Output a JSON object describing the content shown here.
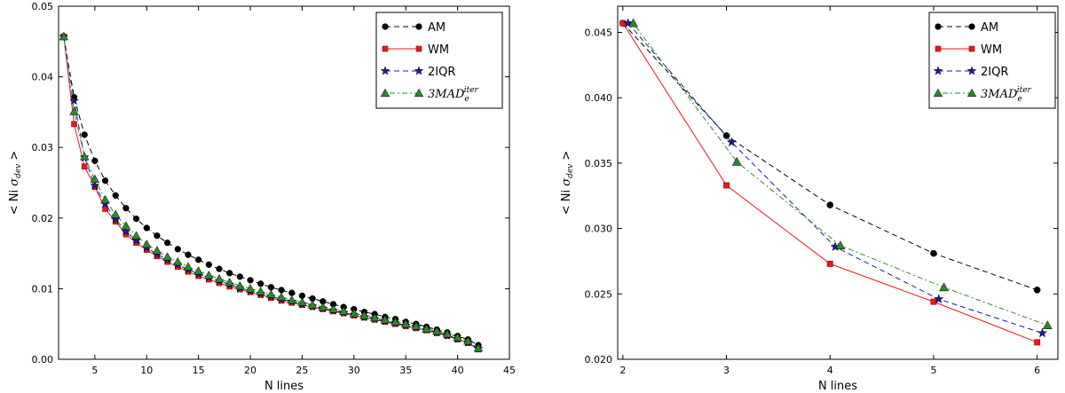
{
  "chart_data": [
    {
      "type": "line",
      "xlabel": "N lines",
      "ylabel": "< Ni σdev >",
      "xlim": [
        1.5,
        45
      ],
      "ylim": [
        0.0,
        0.05
      ],
      "xticks": [
        5,
        10,
        15,
        20,
        25,
        30,
        35,
        40,
        45
      ],
      "yticks": [
        0.0,
        0.01,
        0.02,
        0.03,
        0.04,
        0.05
      ],
      "tick_labels_x": [
        "5",
        "10",
        "15",
        "20",
        "25",
        "30",
        "35",
        "40",
        "45"
      ],
      "tick_labels_y": [
        "0.00",
        "0.01",
        "0.02",
        "0.03",
        "0.04",
        "0.05"
      ],
      "legend": "top-right",
      "grid": false,
      "series": [
        {
          "name": "AM",
          "x": [
            2,
            3,
            4,
            5,
            6,
            7,
            8,
            9,
            10,
            11,
            12,
            13,
            14,
            15,
            16,
            17,
            18,
            19,
            20,
            21,
            22,
            23,
            24,
            25,
            26,
            27,
            28,
            29,
            30,
            31,
            32,
            33,
            34,
            35,
            36,
            37,
            38,
            39,
            40,
            41,
            42
          ],
          "values": [
            0.0457,
            0.0371,
            0.0318,
            0.0281,
            0.0253,
            0.0232,
            0.0214,
            0.0199,
            0.0186,
            0.0175,
            0.0165,
            0.0156,
            0.0148,
            0.0141,
            0.0134,
            0.0128,
            0.0122,
            0.0117,
            0.0112,
            0.0107,
            0.0102,
            0.0098,
            0.0094,
            0.009,
            0.0086,
            0.0082,
            0.0078,
            0.0074,
            0.0071,
            0.0067,
            0.0064,
            0.006,
            0.0057,
            0.0053,
            0.005,
            0.0046,
            0.0042,
            0.0038,
            0.0033,
            0.0028,
            0.002
          ]
        },
        {
          "name": "WM",
          "x": [
            2,
            3,
            4,
            5,
            6,
            7,
            8,
            9,
            10,
            11,
            12,
            13,
            14,
            15,
            16,
            17,
            18,
            19,
            20,
            21,
            22,
            23,
            24,
            25,
            26,
            27,
            28,
            29,
            30,
            31,
            32,
            33,
            34,
            35,
            36,
            37,
            38,
            39,
            40,
            41,
            42
          ],
          "values": [
            0.0457,
            0.0333,
            0.0273,
            0.0244,
            0.0213,
            0.0195,
            0.0177,
            0.0165,
            0.0155,
            0.0146,
            0.0138,
            0.0131,
            0.0124,
            0.0118,
            0.0113,
            0.0108,
            0.0103,
            0.0099,
            0.0095,
            0.0091,
            0.0087,
            0.0083,
            0.008,
            0.0077,
            0.0074,
            0.0071,
            0.0068,
            0.0065,
            0.0062,
            0.0059,
            0.0056,
            0.0053,
            0.005,
            0.0047,
            0.0044,
            0.0041,
            0.0037,
            0.0033,
            0.0028,
            0.0023,
            0.0014
          ]
        },
        {
          "name": "2IQR",
          "x": [
            2,
            3,
            4,
            5,
            6,
            7,
            8,
            9,
            10,
            11,
            12,
            13,
            14,
            15,
            16,
            17,
            18,
            19,
            20,
            21,
            22,
            23,
            24,
            25,
            26,
            27,
            28,
            29,
            30,
            31,
            32,
            33,
            34,
            35,
            36,
            37,
            38,
            39,
            40,
            41,
            42
          ],
          "values": [
            0.0457,
            0.0366,
            0.0286,
            0.0246,
            0.022,
            0.0198,
            0.0181,
            0.0168,
            0.0158,
            0.0149,
            0.0141,
            0.0134,
            0.0127,
            0.0121,
            0.0116,
            0.0111,
            0.0106,
            0.0101,
            0.0097,
            0.0093,
            0.0089,
            0.0085,
            0.0082,
            0.0078,
            0.0075,
            0.0072,
            0.0069,
            0.0066,
            0.0063,
            0.006,
            0.0057,
            0.0054,
            0.0051,
            0.0048,
            0.0045,
            0.0042,
            0.0038,
            0.0034,
            0.0029,
            0.0024,
            0.0015
          ]
        },
        {
          "name": "3MADe^iter",
          "x": [
            2,
            3,
            4,
            5,
            6,
            7,
            8,
            9,
            10,
            11,
            12,
            13,
            14,
            15,
            16,
            17,
            18,
            19,
            20,
            21,
            22,
            23,
            24,
            25,
            26,
            27,
            28,
            29,
            30,
            31,
            32,
            33,
            34,
            35,
            36,
            37,
            38,
            39,
            40,
            41,
            42
          ],
          "values": [
            0.0457,
            0.0351,
            0.0287,
            0.0255,
            0.0226,
            0.0205,
            0.0189,
            0.0175,
            0.0163,
            0.0154,
            0.0145,
            0.0138,
            0.0131,
            0.0125,
            0.0119,
            0.0114,
            0.0109,
            0.0104,
            0.01,
            0.0096,
            0.0092,
            0.0088,
            0.0084,
            0.0081,
            0.0077,
            0.0074,
            0.0071,
            0.0068,
            0.0065,
            0.0062,
            0.0059,
            0.0056,
            0.0053,
            0.005,
            0.0047,
            0.0043,
            0.004,
            0.0036,
            0.0031,
            0.0026,
            0.0016
          ]
        }
      ]
    },
    {
      "type": "line",
      "xlabel": "N lines",
      "ylabel": "< Ni σdev >",
      "xlim": [
        1.95,
        6.2
      ],
      "ylim": [
        0.02,
        0.047
      ],
      "xticks": [
        2,
        3,
        4,
        5,
        6
      ],
      "yticks": [
        0.02,
        0.025,
        0.03,
        0.035,
        0.04,
        0.045
      ],
      "tick_labels_x": [
        "2",
        "3",
        "4",
        "5",
        "6"
      ],
      "tick_labels_y": [
        "0.020",
        "0.025",
        "0.030",
        "0.035",
        "0.040",
        "0.045"
      ],
      "legend": "top-right",
      "grid": false,
      "series": [
        {
          "name": "AM",
          "x": [
            2.0,
            3.0,
            4.0,
            5.0,
            6.0
          ],
          "values": [
            0.0457,
            0.0371,
            0.0318,
            0.0281,
            0.0253
          ]
        },
        {
          "name": "WM",
          "x": [
            2.0,
            3.0,
            4.0,
            5.0,
            6.0
          ],
          "values": [
            0.0457,
            0.0333,
            0.0273,
            0.0244,
            0.0213
          ]
        },
        {
          "name": "2IQR",
          "x": [
            2.05,
            3.05,
            4.05,
            5.05,
            6.05
          ],
          "values": [
            0.0457,
            0.0366,
            0.0286,
            0.0246,
            0.022
          ]
        },
        {
          "name": "3MADe^iter",
          "x": [
            2.1,
            3.1,
            4.1,
            5.1,
            6.1
          ],
          "values": [
            0.0457,
            0.0351,
            0.0287,
            0.0255,
            0.0226
          ]
        }
      ]
    }
  ],
  "legend": {
    "am": "AM",
    "wm": "WM",
    "iqr": "2IQR",
    "mad_base": "3MAD",
    "mad_sub": "e",
    "mad_sup": "iter"
  },
  "axis_text": {
    "ylabel_prefix": "< Ni ",
    "ylabel_sigma": "σ",
    "ylabel_sub": "dev",
    "ylabel_suffix": " >",
    "xlabel": "N lines"
  },
  "styles": {
    "AM": {
      "color": "#000000",
      "marker": "circle",
      "dash": "6,4"
    },
    "WM": {
      "color": "#e41a1c",
      "marker": "square",
      "dash": ""
    },
    "2IQR": {
      "color": "#1a1aa6",
      "marker": "star",
      "dash": "6,4"
    },
    "3MADe^iter": {
      "color": "#2a8a2a",
      "marker": "triangle",
      "dash": "2,3,6,3"
    }
  }
}
